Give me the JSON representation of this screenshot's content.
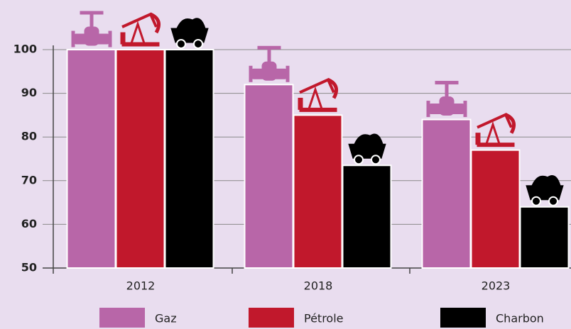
{
  "chart_data": {
    "type": "bar",
    "categories": [
      "2012",
      "2018",
      "2023"
    ],
    "series": [
      {
        "name": "Gaz",
        "color": "#b866a8",
        "values": [
          100,
          92,
          84
        ]
      },
      {
        "name": "Pétrole",
        "color": "#c1182c",
        "values": [
          100,
          85,
          77
        ]
      },
      {
        "name": "Charbon",
        "color": "#000000",
        "values": [
          100,
          73.5,
          64
        ]
      }
    ],
    "ylim": [
      50,
      100
    ],
    "yticks": [
      50,
      60,
      70,
      80,
      90,
      100
    ],
    "grid": true
  }
}
